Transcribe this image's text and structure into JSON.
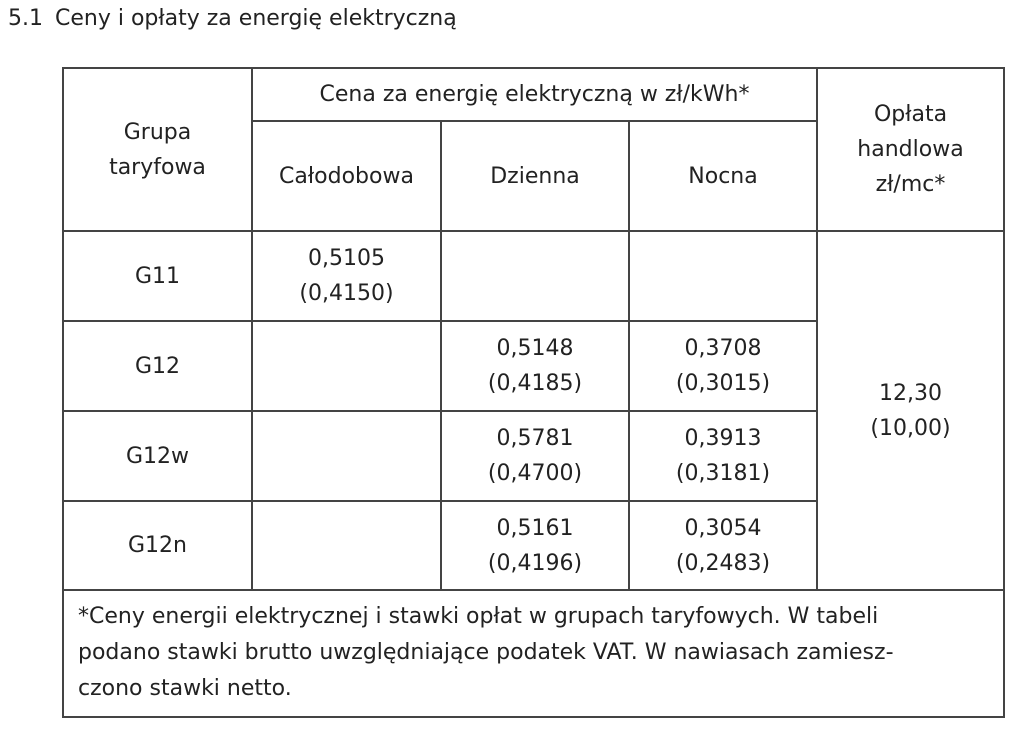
{
  "heading": {
    "number": "5.1",
    "title": "Ceny i opłaty za energię elektryczną"
  },
  "table": {
    "header": {
      "group": [
        "Grupa",
        "taryfowa"
      ],
      "price": "Cena za energię elektryczną w zł/kWh*",
      "columns": [
        "Całodobowa",
        "Dzienna",
        "Nocna"
      ],
      "fee": [
        "Opłata",
        "handlowa",
        "zł/mc*"
      ]
    },
    "rows": [
      {
        "group": "G11",
        "cells": [
          {
            "gross": "0,5105",
            "net": "(0,4150)"
          },
          null,
          null
        ]
      },
      {
        "group": "G12",
        "cells": [
          null,
          {
            "gross": "0,5148",
            "net": "(0,4185)"
          },
          {
            "gross": "0,3708",
            "net": "(0,3015)"
          }
        ]
      },
      {
        "group": "G12w",
        "cells": [
          null,
          {
            "gross": "0,5781",
            "net": "(0,4700)"
          },
          {
            "gross": "0,3913",
            "net": "(0,3181)"
          }
        ]
      },
      {
        "group": "G12n",
        "cells": [
          null,
          {
            "gross": "0,5161",
            "net": "(0,4196)"
          },
          {
            "gross": "0,3054",
            "net": "(0,2483)"
          }
        ]
      }
    ],
    "fee": {
      "gross": "12,30",
      "net": "(10,00)"
    },
    "footnote": [
      "*Ceny energii elektrycznej i stawki opłat w grupach taryfowych. W tabeli",
      "podano stawki brutto uwzględniające podatek VAT. W nawiasach zamiesz-",
      "czono stawki netto."
    ]
  }
}
